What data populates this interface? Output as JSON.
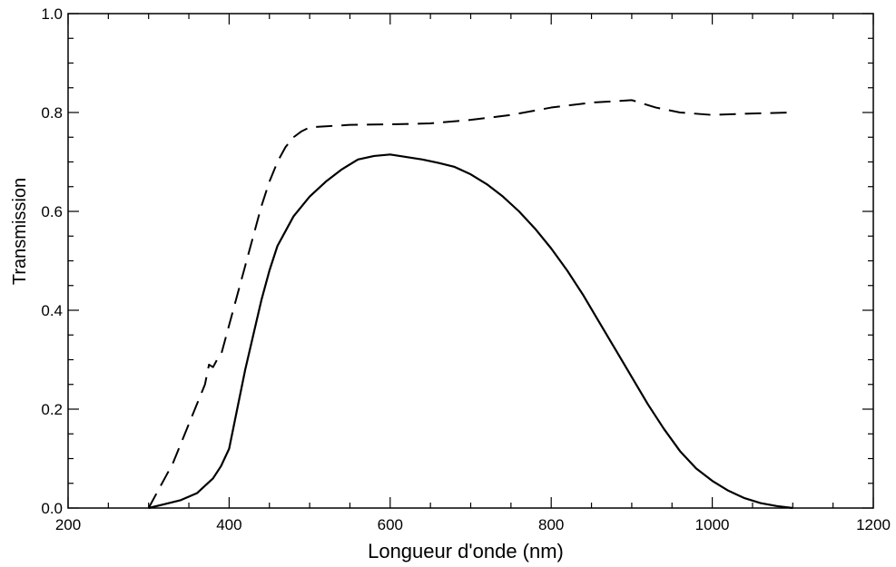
{
  "chart_data": {
    "type": "line",
    "title": "",
    "xlabel": "Longueur d'onde (nm)",
    "ylabel": "Transmission",
    "xlim": [
      200,
      1200
    ],
    "ylim": [
      0.0,
      1.0
    ],
    "x_ticks": [
      200,
      400,
      600,
      800,
      1000,
      1200
    ],
    "x_tick_labels": [
      "200",
      "400",
      "600",
      "800",
      "1000",
      "1200"
    ],
    "y_ticks": [
      0.0,
      0.2,
      0.4,
      0.6,
      0.8,
      1.0
    ],
    "y_tick_labels": [
      "0.0",
      "0.2",
      "0.4",
      "0.6",
      "0.8",
      "1.0"
    ],
    "grid": false,
    "series": [
      {
        "style": "solid",
        "color": "#000000",
        "x": [
          300,
          320,
          340,
          360,
          380,
          390,
          400,
          410,
          420,
          430,
          440,
          450,
          460,
          470,
          480,
          500,
          520,
          540,
          560,
          580,
          600,
          620,
          640,
          660,
          680,
          700,
          720,
          740,
          760,
          780,
          800,
          820,
          840,
          860,
          880,
          900,
          920,
          940,
          960,
          980,
          1000,
          1020,
          1040,
          1060,
          1080,
          1100
        ],
        "y": [
          0.0,
          0.008,
          0.016,
          0.03,
          0.06,
          0.085,
          0.12,
          0.2,
          0.28,
          0.35,
          0.42,
          0.48,
          0.53,
          0.56,
          0.59,
          0.63,
          0.66,
          0.685,
          0.705,
          0.712,
          0.715,
          0.71,
          0.705,
          0.698,
          0.69,
          0.675,
          0.655,
          0.63,
          0.6,
          0.565,
          0.525,
          0.48,
          0.43,
          0.375,
          0.32,
          0.265,
          0.21,
          0.16,
          0.115,
          0.08,
          0.055,
          0.035,
          0.02,
          0.01,
          0.004,
          0.0
        ]
      },
      {
        "style": "dashed",
        "color": "#000000",
        "x": [
          300,
          310,
          320,
          330,
          340,
          350,
          360,
          370,
          375,
          380,
          385,
          390,
          400,
          410,
          420,
          430,
          440,
          450,
          460,
          470,
          480,
          490,
          500,
          520,
          550,
          600,
          650,
          700,
          750,
          800,
          850,
          900,
          930,
          960,
          1000,
          1050,
          1100
        ],
        "y": [
          0.0,
          0.03,
          0.06,
          0.09,
          0.13,
          0.17,
          0.21,
          0.25,
          0.29,
          0.285,
          0.3,
          0.31,
          0.37,
          0.43,
          0.49,
          0.55,
          0.61,
          0.66,
          0.7,
          0.73,
          0.75,
          0.762,
          0.77,
          0.772,
          0.775,
          0.776,
          0.778,
          0.785,
          0.795,
          0.81,
          0.82,
          0.825,
          0.81,
          0.8,
          0.795,
          0.798,
          0.8
        ]
      }
    ]
  }
}
